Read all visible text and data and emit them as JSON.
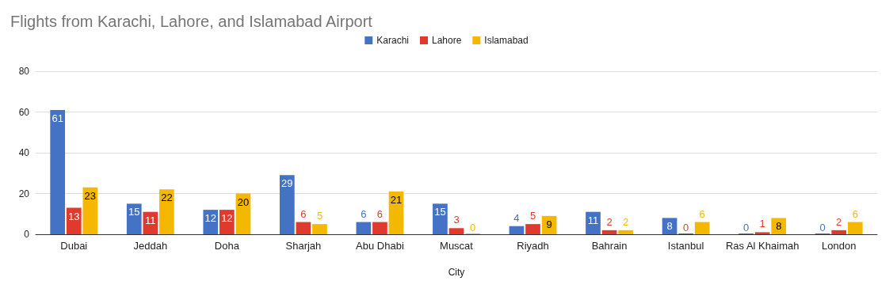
{
  "chart_data": {
    "type": "bar",
    "title": "Flights from Karachi, Lahore, and Islamabad Airport",
    "xlabel": "City",
    "categories": [
      "Dubai",
      "Jeddah",
      "Doha",
      "Sharjah",
      "Abu Dhabi",
      "Muscat",
      "Riyadh",
      "Bahrain",
      "Istanbul",
      "Ras Al Khaimah",
      "London"
    ],
    "series": [
      {
        "name": "Karachi",
        "color": "#4472c4",
        "values": [
          61,
          15,
          12,
          29,
          6,
          15,
          4,
          11,
          8,
          0,
          0
        ]
      },
      {
        "name": "Lahore",
        "color": "#e03a2f",
        "values": [
          13,
          11,
          12,
          6,
          6,
          3,
          5,
          2,
          0,
          1,
          2
        ]
      },
      {
        "name": "Islamabad",
        "color": "#f5b800",
        "values": [
          23,
          22,
          20,
          5,
          21,
          0,
          9,
          2,
          6,
          8,
          6
        ]
      }
    ],
    "ylim": [
      0,
      80
    ],
    "yticks": [
      0,
      20,
      40,
      60,
      80
    ],
    "grid": "y",
    "legend": "top",
    "data_labels": true
  }
}
